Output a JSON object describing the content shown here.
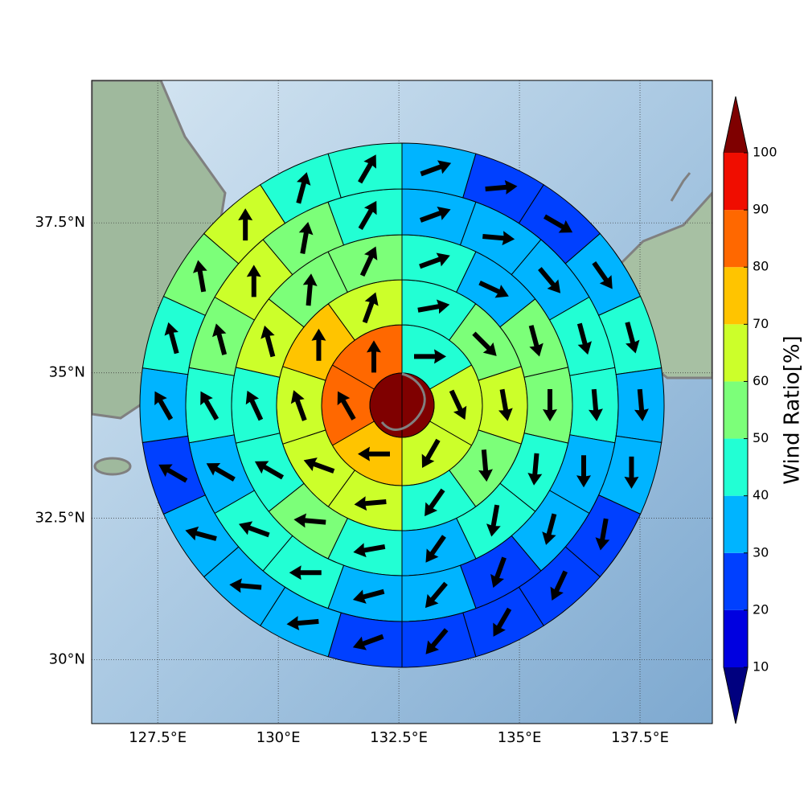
{
  "chart_data": {
    "type": "polar",
    "xlim": [
      126.13,
      139.0
    ],
    "ylim": [
      28.85,
      39.8
    ],
    "xticks": [
      {
        "value": 127.5,
        "label": "127.5°E"
      },
      {
        "value": 130,
        "label": "130°E"
      },
      {
        "value": 132.5,
        "label": "132.5°E"
      },
      {
        "value": 135,
        "label": "135°E"
      },
      {
        "value": 137.5,
        "label": "137.5°E"
      }
    ],
    "yticks": [
      {
        "value": 30,
        "label": "30°N"
      },
      {
        "value": 32.5,
        "label": "32.5°N"
      },
      {
        "value": 35,
        "label": "35°N"
      },
      {
        "value": 37.5,
        "label": "37.5°N"
      }
    ],
    "grid": true,
    "colorbar": {
      "label": "Wind Ratio[%]",
      "levels": [
        10,
        20,
        30,
        40,
        50,
        60,
        70,
        80,
        90,
        100
      ],
      "colors": [
        "#0000e0",
        "#0040ff",
        "#00b4ff",
        "#22ffd4",
        "#7cff79",
        "#ccff2a",
        "#ffc400",
        "#ff6800",
        "#f00d00"
      ],
      "under_color": "#00007f",
      "over_color": "#7f0000"
    },
    "center": {
      "value": 100
    },
    "rings": [
      {
        "values": [
          45,
          65,
          65,
          75,
          85,
          85
        ],
        "directions": [
          90,
          155,
          210,
          270,
          330,
          0
        ]
      },
      {
        "values": [
          45,
          55,
          65,
          55,
          45,
          65,
          65,
          65,
          75,
          65
        ],
        "directions": [
          80,
          135,
          170,
          175,
          215,
          265,
          290,
          340,
          0,
          20
        ]
      },
      {
        "values": [
          45,
          35,
          55,
          55,
          45,
          45,
          35,
          45,
          55,
          45,
          45,
          65,
          55,
          55
        ],
        "directions": [
          70,
          115,
          165,
          180,
          185,
          190,
          215,
          260,
          275,
          300,
          335,
          345,
          5,
          25
        ]
      },
      {
        "values": [
          35,
          35,
          35,
          45,
          45,
          35,
          35,
          25,
          35,
          35,
          45,
          45,
          35,
          45,
          55,
          65,
          55,
          45
        ],
        "directions": [
          70,
          95,
          140,
          165,
          175,
          180,
          195,
          200,
          220,
          255,
          270,
          290,
          300,
          330,
          345,
          0,
          10,
          30
        ]
      },
      {
        "values": [
          35,
          25,
          25,
          35,
          45,
          35,
          35,
          25,
          25,
          25,
          25,
          25,
          35,
          35,
          35,
          25,
          35,
          45,
          55,
          65,
          45,
          45
        ],
        "directions": [
          70,
          85,
          120,
          145,
          165,
          175,
          180,
          190,
          205,
          210,
          220,
          250,
          265,
          275,
          285,
          300,
          330,
          345,
          350,
          0,
          15,
          30
        ]
      }
    ]
  }
}
